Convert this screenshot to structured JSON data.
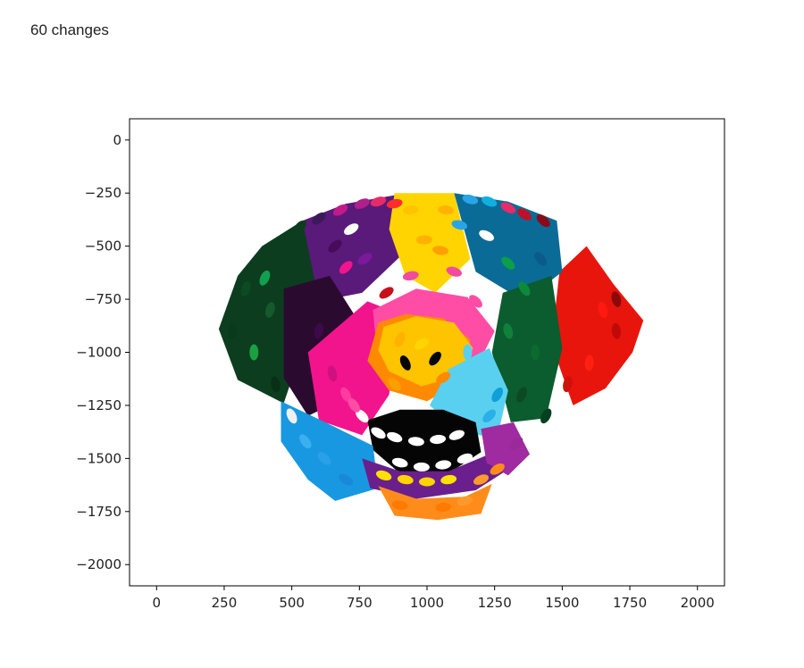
{
  "output": {
    "label": "60 changes"
  },
  "chart_data": {
    "type": "scatter",
    "title": "",
    "xlabel": "",
    "ylabel": "",
    "xlim": [
      -100,
      2100
    ],
    "ylim": [
      -2100,
      100
    ],
    "x_ticks": [
      0,
      250,
      500,
      750,
      1000,
      1250,
      1500,
      1750,
      2000
    ],
    "y_ticks": [
      0,
      -250,
      -500,
      -750,
      -1000,
      -1250,
      -1500,
      -1750,
      -2000
    ],
    "x_tick_labels": [
      "0",
      "250",
      "500",
      "750",
      "1000",
      "1250",
      "1500",
      "1750",
      "2000"
    ],
    "y_tick_labels": [
      "0",
      "−250",
      "−500",
      "−750",
      "−1000",
      "−1250",
      "−1500",
      "−1750",
      "−2000"
    ],
    "grid": false,
    "legend": "none",
    "description": "Mosaic of colored brush strokes forming a stylized dog face",
    "regions": [
      {
        "name": "left-ear",
        "color": "#0c3d1f",
        "points": [
          [
            230,
            -890
          ],
          [
            300,
            -640
          ],
          [
            390,
            -500
          ],
          [
            540,
            -380
          ],
          [
            600,
            -600
          ],
          [
            560,
            -900
          ],
          [
            470,
            -1240
          ],
          [
            300,
            -1130
          ]
        ]
      },
      {
        "name": "right-ear",
        "color": "#e8150c",
        "points": [
          [
            1490,
            -620
          ],
          [
            1590,
            -500
          ],
          [
            1690,
            -680
          ],
          [
            1800,
            -850
          ],
          [
            1760,
            -1000
          ],
          [
            1660,
            -1170
          ],
          [
            1540,
            -1250
          ],
          [
            1460,
            -960
          ]
        ]
      },
      {
        "name": "head-top-left-purple",
        "color": "#5a1a7a",
        "points": [
          [
            540,
            -380
          ],
          [
            700,
            -300
          ],
          [
            880,
            -260
          ],
          [
            900,
            -550
          ],
          [
            760,
            -720
          ],
          [
            600,
            -760
          ]
        ]
      },
      {
        "name": "head-top-right-teal",
        "color": "#0a6b96",
        "points": [
          [
            1100,
            -250
          ],
          [
            1300,
            -290
          ],
          [
            1480,
            -380
          ],
          [
            1500,
            -620
          ],
          [
            1360,
            -760
          ],
          [
            1180,
            -620
          ]
        ]
      },
      {
        "name": "top-yellow",
        "color": "#ffd400",
        "points": [
          [
            880,
            -250
          ],
          [
            1100,
            -250
          ],
          [
            1160,
            -560
          ],
          [
            1030,
            -720
          ],
          [
            920,
            -640
          ],
          [
            860,
            -420
          ]
        ]
      },
      {
        "name": "left-cheek-dark",
        "color": "#2b0a30",
        "points": [
          [
            470,
            -700
          ],
          [
            640,
            -640
          ],
          [
            760,
            -880
          ],
          [
            720,
            -1200
          ],
          [
            560,
            -1300
          ],
          [
            470,
            -1120
          ]
        ]
      },
      {
        "name": "right-cheek-green",
        "color": "#0b5c2e",
        "points": [
          [
            1280,
            -720
          ],
          [
            1460,
            -640
          ],
          [
            1500,
            -980
          ],
          [
            1440,
            -1310
          ],
          [
            1310,
            -1330
          ],
          [
            1240,
            -1000
          ]
        ]
      },
      {
        "name": "left-pink",
        "color": "#f2148c",
        "points": [
          [
            560,
            -1000
          ],
          [
            780,
            -760
          ],
          [
            900,
            -820
          ],
          [
            860,
            -1200
          ],
          [
            760,
            -1390
          ],
          [
            600,
            -1320
          ]
        ]
      },
      {
        "name": "center-pink",
        "color": "#ff4da6",
        "points": [
          [
            800,
            -800
          ],
          [
            960,
            -700
          ],
          [
            1150,
            -740
          ],
          [
            1250,
            -900
          ],
          [
            1180,
            -1080
          ],
          [
            960,
            -1180
          ],
          [
            820,
            -1080
          ]
        ]
      },
      {
        "name": "center-orange",
        "color": "#ff8a00",
        "points": [
          [
            820,
            -860
          ],
          [
            920,
            -820
          ],
          [
            1060,
            -840
          ],
          [
            1160,
            -940
          ],
          [
            1140,
            -1130
          ],
          [
            1000,
            -1230
          ],
          [
            860,
            -1180
          ],
          [
            780,
            -1040
          ]
        ]
      },
      {
        "name": "nose-yellow",
        "color": "#ffc400",
        "points": [
          [
            840,
            -880
          ],
          [
            960,
            -830
          ],
          [
            1100,
            -860
          ],
          [
            1170,
            -980
          ],
          [
            1120,
            -1110
          ],
          [
            980,
            -1160
          ],
          [
            860,
            -1090
          ],
          [
            820,
            -990
          ]
        ]
      },
      {
        "name": "right-light-blue",
        "color": "#5ad0f0",
        "points": [
          [
            1080,
            -1080
          ],
          [
            1230,
            -980
          ],
          [
            1300,
            -1180
          ],
          [
            1260,
            -1400
          ],
          [
            1120,
            -1380
          ],
          [
            1010,
            -1250
          ]
        ]
      },
      {
        "name": "mouth-black",
        "color": "#050505",
        "points": [
          [
            780,
            -1320
          ],
          [
            900,
            -1270
          ],
          [
            1060,
            -1270
          ],
          [
            1180,
            -1330
          ],
          [
            1200,
            -1470
          ],
          [
            1080,
            -1570
          ],
          [
            900,
            -1570
          ],
          [
            800,
            -1460
          ]
        ]
      },
      {
        "name": "lower-left-blue",
        "color": "#1898e0",
        "points": [
          [
            460,
            -1230
          ],
          [
            640,
            -1340
          ],
          [
            800,
            -1440
          ],
          [
            820,
            -1640
          ],
          [
            660,
            -1700
          ],
          [
            560,
            -1600
          ],
          [
            460,
            -1420
          ]
        ]
      },
      {
        "name": "lower-purple",
        "color": "#6a1f8c",
        "points": [
          [
            760,
            -1500
          ],
          [
            900,
            -1560
          ],
          [
            1080,
            -1560
          ],
          [
            1230,
            -1480
          ],
          [
            1290,
            -1560
          ],
          [
            1180,
            -1650
          ],
          [
            960,
            -1690
          ],
          [
            790,
            -1640
          ]
        ]
      },
      {
        "name": "chin-orange",
        "color": "#ff8c1a",
        "points": [
          [
            820,
            -1630
          ],
          [
            960,
            -1690
          ],
          [
            1140,
            -1680
          ],
          [
            1240,
            -1620
          ],
          [
            1200,
            -1760
          ],
          [
            1040,
            -1790
          ],
          [
            880,
            -1770
          ]
        ]
      },
      {
        "name": "lower-right-purple",
        "color": "#a02aa0",
        "points": [
          [
            1200,
            -1360
          ],
          [
            1320,
            -1330
          ],
          [
            1380,
            -1480
          ],
          [
            1300,
            -1580
          ],
          [
            1220,
            -1520
          ]
        ]
      }
    ],
    "strokes": [
      {
        "x": 1010,
        "y": -280,
        "color": "#ffd400"
      },
      {
        "x": 940,
        "y": -330,
        "color": "#ffc400"
      },
      {
        "x": 1070,
        "y": -330,
        "color": "#ffb300"
      },
      {
        "x": 880,
        "y": -300,
        "color": "#ff2d2d"
      },
      {
        "x": 990,
        "y": -470,
        "color": "#ffb000"
      },
      {
        "x": 1050,
        "y": -520,
        "color": "#ff9f00"
      },
      {
        "x": 760,
        "y": -300,
        "color": "#b0208a"
      },
      {
        "x": 820,
        "y": -290,
        "color": "#e82a6a"
      },
      {
        "x": 680,
        "y": -330,
        "color": "#c21a8a"
      },
      {
        "x": 600,
        "y": -370,
        "color": "#3c1a5a"
      },
      {
        "x": 530,
        "y": -410,
        "color": "#0c3d1f"
      },
      {
        "x": 1160,
        "y": -280,
        "color": "#2aa4e8"
      },
      {
        "x": 1230,
        "y": -290,
        "color": "#0fb0e0"
      },
      {
        "x": 1300,
        "y": -320,
        "color": "#e82a6a"
      },
      {
        "x": 1360,
        "y": -350,
        "color": "#c0102a"
      },
      {
        "x": 1430,
        "y": -380,
        "color": "#8a0a1a"
      },
      {
        "x": 1120,
        "y": -400,
        "color": "#2aa4e8"
      },
      {
        "x": 720,
        "y": -420,
        "color": "#ffffff"
      },
      {
        "x": 770,
        "y": -560,
        "color": "#7a1a9a"
      },
      {
        "x": 700,
        "y": -600,
        "color": "#f2148c"
      },
      {
        "x": 660,
        "y": -500,
        "color": "#4a0a5a"
      },
      {
        "x": 1220,
        "y": -450,
        "color": "#ffffff"
      },
      {
        "x": 1300,
        "y": -580,
        "color": "#0aa04a"
      },
      {
        "x": 1360,
        "y": -700,
        "color": "#0b8a3a"
      },
      {
        "x": 1420,
        "y": -560,
        "color": "#0a5a8a"
      },
      {
        "x": 1100,
        "y": -620,
        "color": "#f24aa0"
      },
      {
        "x": 940,
        "y": -640,
        "color": "#f24aa0"
      },
      {
        "x": 850,
        "y": -720,
        "color": "#c8101a"
      },
      {
        "x": 1180,
        "y": -760,
        "color": "#ff4da6"
      },
      {
        "x": 1150,
        "y": -1000,
        "color": "#5ad0f0"
      },
      {
        "x": 1230,
        "y": -1300,
        "color": "#2ab0e8"
      },
      {
        "x": 1260,
        "y": -1200,
        "color": "#0fa0d8"
      },
      {
        "x": 920,
        "y": -1050,
        "color": "#050505"
      },
      {
        "x": 1030,
        "y": -1030,
        "color": "#050505"
      },
      {
        "x": 980,
        "y": -960,
        "color": "#ffd400"
      },
      {
        "x": 900,
        "y": -940,
        "color": "#ffb300"
      },
      {
        "x": 1060,
        "y": -1120,
        "color": "#ff8a00"
      },
      {
        "x": 880,
        "y": -1150,
        "color": "#ff9f00"
      },
      {
        "x": 700,
        "y": -1200,
        "color": "#ff3aa0"
      },
      {
        "x": 650,
        "y": -1100,
        "color": "#d01080"
      },
      {
        "x": 600,
        "y": -900,
        "color": "#3c0a4a"
      },
      {
        "x": 520,
        "y": -1000,
        "color": "#2b0a30"
      },
      {
        "x": 420,
        "y": -800,
        "color": "#145a2a"
      },
      {
        "x": 330,
        "y": -700,
        "color": "#0b4a22"
      },
      {
        "x": 280,
        "y": -900,
        "color": "#0a3a1a"
      },
      {
        "x": 360,
        "y": -1000,
        "color": "#1aa040"
      },
      {
        "x": 400,
        "y": -650,
        "color": "#10a050"
      },
      {
        "x": 440,
        "y": -1150,
        "color": "#083018"
      },
      {
        "x": 1550,
        "y": -700,
        "color": "#e8150c"
      },
      {
        "x": 1650,
        "y": -800,
        "color": "#ff1a10"
      },
      {
        "x": 1700,
        "y": -900,
        "color": "#c00a0a"
      },
      {
        "x": 1600,
        "y": -1050,
        "color": "#ff2010"
      },
      {
        "x": 1520,
        "y": -1150,
        "color": "#d0100a"
      },
      {
        "x": 1700,
        "y": -750,
        "color": "#8a0a0a"
      },
      {
        "x": 1400,
        "y": -1000,
        "color": "#0a6a30"
      },
      {
        "x": 1350,
        "y": -1200,
        "color": "#0b4a22"
      },
      {
        "x": 1440,
        "y": -1300,
        "color": "#054020"
      },
      {
        "x": 1300,
        "y": -900,
        "color": "#10803a"
      },
      {
        "x": 880,
        "y": -1400,
        "color": "#ffffff"
      },
      {
        "x": 960,
        "y": -1420,
        "color": "#ffffff"
      },
      {
        "x": 1040,
        "y": -1410,
        "color": "#ffffff"
      },
      {
        "x": 1110,
        "y": -1390,
        "color": "#ffffff"
      },
      {
        "x": 820,
        "y": -1380,
        "color": "#ffffff"
      },
      {
        "x": 900,
        "y": -1520,
        "color": "#ffffff"
      },
      {
        "x": 980,
        "y": -1540,
        "color": "#ffffff"
      },
      {
        "x": 1060,
        "y": -1530,
        "color": "#ffffff"
      },
      {
        "x": 1140,
        "y": -1500,
        "color": "#ffffff"
      },
      {
        "x": 840,
        "y": -1580,
        "color": "#ffe000"
      },
      {
        "x": 920,
        "y": -1600,
        "color": "#ffd400"
      },
      {
        "x": 1000,
        "y": -1610,
        "color": "#ffd400"
      },
      {
        "x": 1080,
        "y": -1600,
        "color": "#ffe000"
      },
      {
        "x": 900,
        "y": -1720,
        "color": "#ff7a00"
      },
      {
        "x": 980,
        "y": -1740,
        "color": "#ff8c1a"
      },
      {
        "x": 1060,
        "y": -1730,
        "color": "#ff7a00"
      },
      {
        "x": 1140,
        "y": -1700,
        "color": "#ff9a2a"
      },
      {
        "x": 620,
        "y": -1500,
        "color": "#2aa0e8"
      },
      {
        "x": 700,
        "y": -1600,
        "color": "#1a88d8"
      },
      {
        "x": 550,
        "y": -1420,
        "color": "#3ab0f0"
      },
      {
        "x": 500,
        "y": -1300,
        "color": "#f0f0f0"
      },
      {
        "x": 760,
        "y": -1300,
        "color": "#ffffff"
      },
      {
        "x": 730,
        "y": -1250,
        "color": "#ff4da6"
      },
      {
        "x": 1330,
        "y": -1430,
        "color": "#9a2a9a"
      },
      {
        "x": 1260,
        "y": -1550,
        "color": "#ff8c1a"
      },
      {
        "x": 1200,
        "y": -1600,
        "color": "#ff9a2a"
      },
      {
        "x": 860,
        "y": -1460,
        "color": "#050505"
      },
      {
        "x": 1000,
        "y": -1460,
        "color": "#050505"
      },
      {
        "x": 1120,
        "y": -1440,
        "color": "#050505"
      }
    ]
  }
}
